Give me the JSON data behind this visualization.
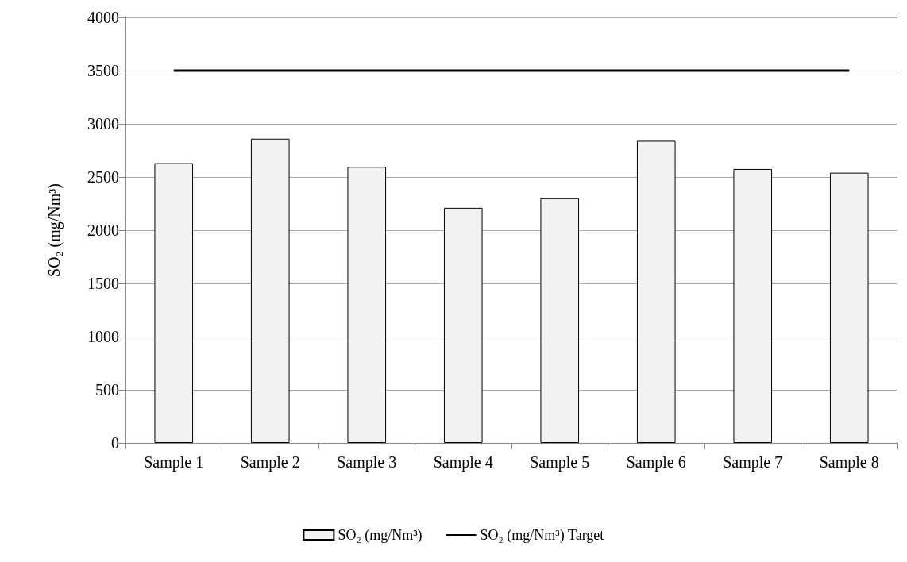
{
  "chart_data": {
    "type": "bar",
    "ylabel": "SO₂ (mg/Nm³)",
    "categories": [
      "Sample 1",
      "Sample 2",
      "Sample 3",
      "Sample 4",
      "Sample 5",
      "Sample 6",
      "Sample 7",
      "Sample 8"
    ],
    "series": [
      {
        "name": "SO₂ (mg/Nm³)",
        "color": "#f2f2f2",
        "values": [
          2630,
          2860,
          2595,
          2210,
          2300,
          2840,
          2575,
          2540
        ]
      },
      {
        "name": "SO₂ (mg/Nm³) Target",
        "type": "line",
        "color": "#000000",
        "values": [
          3500,
          3500,
          3500,
          3500,
          3500,
          3500,
          3500,
          3500
        ]
      }
    ],
    "ylim": [
      0,
      4000
    ],
    "yticks": [
      0,
      500,
      1000,
      1500,
      2000,
      2500,
      3000,
      3500,
      4000
    ],
    "grid": "y",
    "legend": "bottom",
    "marker": "none",
    "line_style": "solid"
  }
}
